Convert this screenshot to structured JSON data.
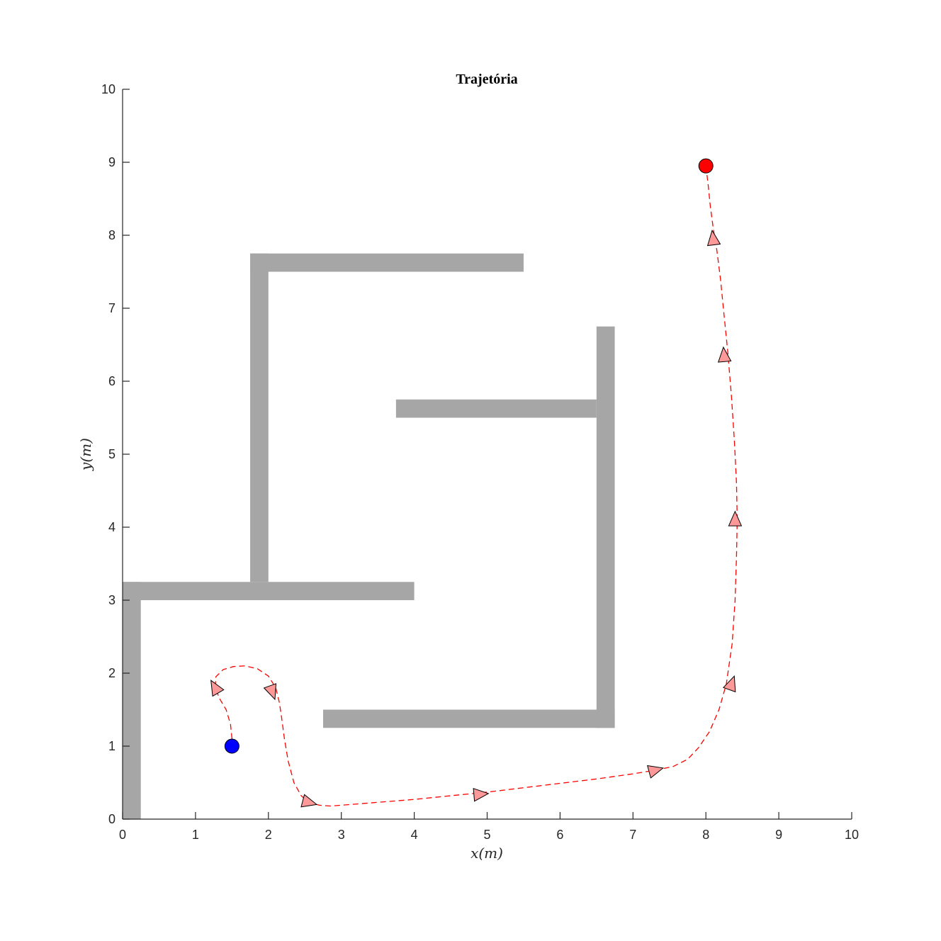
{
  "chart_data": {
    "type": "line",
    "title": "Trajetória",
    "xlabel": "x(m)",
    "ylabel": "y(m)",
    "xlim": [
      0,
      10
    ],
    "ylim": [
      0,
      10
    ],
    "xticks": [
      0,
      1,
      2,
      3,
      4,
      5,
      6,
      7,
      8,
      9,
      10
    ],
    "yticks": [
      0,
      1,
      2,
      3,
      4,
      5,
      6,
      7,
      8,
      9,
      10
    ],
    "grid": false,
    "obstacles": [
      {
        "x": [
          0,
          0.25
        ],
        "y": [
          0,
          3.25
        ]
      },
      {
        "x": [
          0,
          4
        ],
        "y": [
          3,
          3.25
        ]
      },
      {
        "x": [
          1.75,
          2
        ],
        "y": [
          3.25,
          7.75
        ]
      },
      {
        "x": [
          1.75,
          5.5
        ],
        "y": [
          7.5,
          7.75
        ]
      },
      {
        "x": [
          2.75,
          6.75
        ],
        "y": [
          1.25,
          1.5
        ]
      },
      {
        "x": [
          6.5,
          6.75
        ],
        "y": [
          1.25,
          6.75
        ]
      },
      {
        "x": [
          3.75,
          6.5
        ],
        "y": [
          5.5,
          5.75
        ]
      }
    ],
    "obstacle_color": "#a6a6a6",
    "start": {
      "x": 1.5,
      "y": 1.0,
      "color": "#0000ff"
    },
    "goal": {
      "x": 8.0,
      "y": 8.95,
      "color": "#ff0000"
    },
    "trajectory": {
      "color": "#ff0000",
      "style": "dashed",
      "x": [
        1.5,
        1.48,
        1.42,
        1.33,
        1.27,
        1.28,
        1.38,
        1.52,
        1.68,
        1.85,
        2.0,
        2.1,
        2.15,
        2.18,
        2.22,
        2.27,
        2.35,
        2.45,
        2.55,
        2.7,
        2.85,
        3.0,
        3.5,
        4.0,
        4.5,
        5.0,
        5.5,
        6.0,
        6.5,
        7.0,
        7.3,
        7.55,
        7.75,
        7.9,
        8.05,
        8.18,
        8.28,
        8.36,
        8.4,
        8.42,
        8.43,
        8.42,
        8.39,
        8.35,
        8.3,
        8.25,
        8.2,
        8.15,
        8.1,
        8.06,
        8.03,
        8.0
      ],
      "y": [
        1.1,
        1.3,
        1.5,
        1.65,
        1.8,
        1.95,
        2.05,
        2.09,
        2.1,
        2.06,
        1.96,
        1.8,
        1.6,
        1.4,
        1.1,
        0.8,
        0.5,
        0.32,
        0.23,
        0.19,
        0.18,
        0.19,
        0.23,
        0.27,
        0.32,
        0.37,
        0.43,
        0.49,
        0.55,
        0.62,
        0.67,
        0.72,
        0.82,
        0.98,
        1.2,
        1.5,
        1.85,
        2.4,
        3.0,
        3.6,
        4.1,
        4.6,
        5.2,
        5.8,
        6.4,
        6.9,
        7.4,
        7.8,
        8.1,
        8.4,
        8.7,
        8.95
      ]
    },
    "direction_markers": {
      "fill": "#ff9999",
      "points": [
        {
          "x": 1.27,
          "y": 1.8,
          "angle": 120
        },
        {
          "x": 2.05,
          "y": 1.75,
          "angle": -70
        },
        {
          "x": 2.55,
          "y": 0.23,
          "angle": -15
        },
        {
          "x": 4.9,
          "y": 0.34,
          "angle": 5
        },
        {
          "x": 7.3,
          "y": 0.67,
          "angle": 15
        },
        {
          "x": 8.35,
          "y": 1.85,
          "angle": 70
        },
        {
          "x": 8.4,
          "y": 4.1,
          "angle": 90
        },
        {
          "x": 8.25,
          "y": 6.35,
          "angle": 95
        },
        {
          "x": 8.1,
          "y": 7.95,
          "angle": 97
        }
      ]
    }
  }
}
